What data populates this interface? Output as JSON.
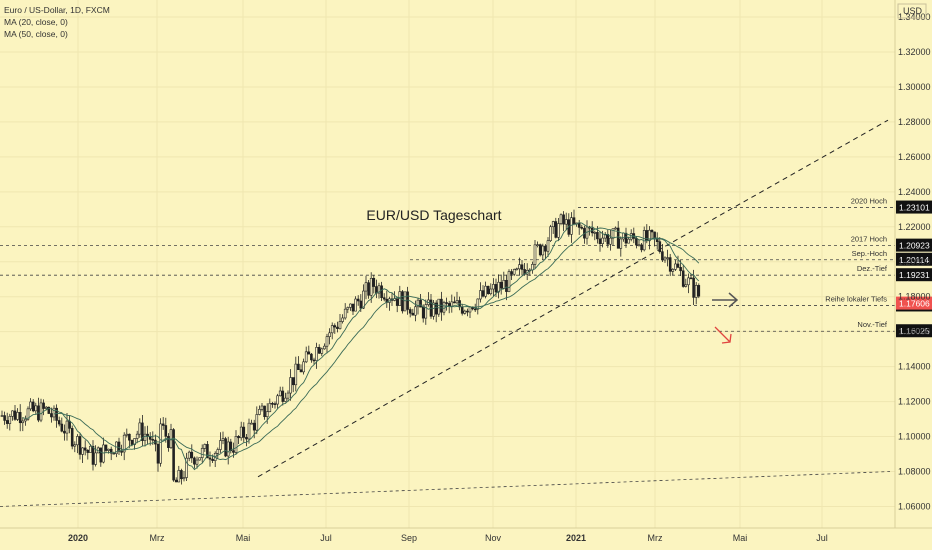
{
  "legend": {
    "symbol": "Euro / US-Dollar, 1D, FXCM",
    "ma20": "MA (20, close, 0)",
    "ma50": "MA (50, close, 0)"
  },
  "chart_data": {
    "type": "candlestick",
    "title": "EUR/USD Tageschart",
    "currency": "USD",
    "ylim": [
      1.055,
      1.355
    ],
    "y_ticks": [
      "1.06000",
      "1.08000",
      "1.10000",
      "1.12000",
      "1.14000",
      "1.16000",
      "1.18000",
      "1.20000",
      "1.22000",
      "1.24000",
      "1.26000",
      "1.28000",
      "1.30000",
      "1.32000",
      "1.34000"
    ],
    "x_ticks": [
      "2020",
      "Mrz",
      "Mai",
      "Jul",
      "Sep",
      "Nov",
      "2021",
      "Mrz",
      "Mai",
      "Jul"
    ],
    "colors": {
      "up": "#222222",
      "down": "#222222",
      "ma20": "#3b6b57",
      "ma50": "#3b6b57",
      "last_price": "#f0524f",
      "label_bg": "#111111"
    },
    "price_levels": [
      {
        "name": "2020 Hoch",
        "value": "1.23101"
      },
      {
        "name": "2017 Hoch",
        "value": "1.20923"
      },
      {
        "name": "Sep.-Hoch",
        "value": "1.20114"
      },
      {
        "name": "Dez.-Tief",
        "value": "1.19231"
      },
      {
        "name": "Reihe lokaler Tiefs",
        "value": "1.17500"
      },
      {
        "name": "Nov.-Tief",
        "value": "1.16025"
      }
    ],
    "last_price": "1.17606",
    "series_close": [
      {
        "date": "2019-12",
        "v": 1.112
      },
      {
        "date": "2020-01",
        "v": 1.115
      },
      {
        "date": "2020-02",
        "v": 1.088
      },
      {
        "date": "2020-03",
        "v": 1.103
      },
      {
        "date": "2020-04",
        "v": 1.088
      },
      {
        "date": "2020-05",
        "v": 1.095
      },
      {
        "date": "2020-06",
        "v": 1.124
      },
      {
        "date": "2020-07",
        "v": 1.158
      },
      {
        "date": "2020-08",
        "v": 1.187
      },
      {
        "date": "2020-09",
        "v": 1.172
      },
      {
        "date": "2020-10",
        "v": 1.175
      },
      {
        "date": "2020-11",
        "v": 1.19
      },
      {
        "date": "2020-12",
        "v": 1.222
      },
      {
        "date": "2021-01",
        "v": 1.214
      },
      {
        "date": "2021-02",
        "v": 1.212
      },
      {
        "date": "2021-03",
        "v": 1.18
      }
    ]
  }
}
